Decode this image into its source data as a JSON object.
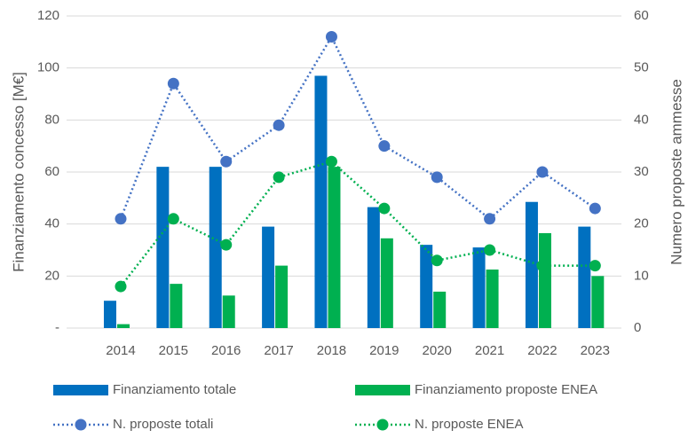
{
  "chart_data": {
    "type": "bar-line",
    "categories": [
      "2014",
      "2015",
      "2016",
      "2017",
      "2018",
      "2019",
      "2020",
      "2021",
      "2022",
      "2023"
    ],
    "ylabel": "Finanziamento concesso [M€]",
    "y2label": "Numero proposte ammesse",
    "ylim": [
      0,
      120
    ],
    "yticks": [
      {
        "value": 0,
        "label": "-"
      },
      20,
      40,
      60,
      80,
      100,
      120
    ],
    "y2lim": [
      0,
      60
    ],
    "y2ticks": [
      0,
      10,
      20,
      30,
      40,
      50,
      60
    ],
    "grid": true,
    "legend": "bottom",
    "series": [
      {
        "name": "Finanziamento totale",
        "type": "bar",
        "color": "#0070c0",
        "values": [
          10.5,
          62,
          62,
          39,
          97,
          46.5,
          32,
          31,
          48.5,
          39
        ]
      },
      {
        "name": "Finanziamento proposte ENEA",
        "type": "bar",
        "color": "#00b050",
        "values": [
          1.5,
          17,
          12.5,
          24,
          62,
          34.5,
          14,
          22.5,
          36.5,
          20
        ]
      },
      {
        "name": "N. proposte totali",
        "type": "line",
        "axis": "y2",
        "color": "#4472c4",
        "values": [
          21,
          47,
          32,
          39,
          56,
          35,
          29,
          21,
          30,
          23
        ]
      },
      {
        "name": "N. proposte ENEA",
        "type": "line",
        "axis": "y2",
        "color": "#00b050",
        "values": [
          8,
          21,
          16,
          29,
          32,
          23,
          13,
          15,
          12,
          12
        ]
      }
    ]
  }
}
